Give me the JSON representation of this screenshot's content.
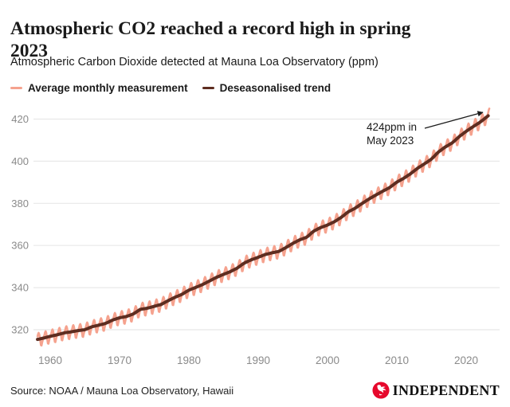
{
  "header": {
    "title_lines": [
      "Atmospheric CO2 reached a record high in spring",
      "2023"
    ],
    "subtitle": "Atmospheric Carbon Dioxide detected at Mauna Loa Observatory (ppm)"
  },
  "legend": {
    "items": [
      {
        "label": "Average monthly measurement",
        "color": "#f5a28e"
      },
      {
        "label": "Deseasonalised trend",
        "color": "#5e2d20"
      }
    ]
  },
  "annotation": {
    "line1": "424ppm in",
    "line2": "May 2023"
  },
  "footer": {
    "source": "Source: NOAA / Mauna Loa Observatory, Hawaii",
    "brand": "INDEPENDENT",
    "brand_red": "#e6082c"
  },
  "chart_data": {
    "type": "line",
    "title": "Atmospheric CO2 reached a record high in spring 2023",
    "subtitle": "Atmospheric Carbon Dioxide detected at Mauna Loa Observatory (ppm)",
    "xlabel": "",
    "ylabel": "ppm",
    "x_ticks": [
      1960,
      1970,
      1980,
      1990,
      2000,
      2010,
      2020
    ],
    "y_ticks": [
      320,
      340,
      360,
      380,
      400,
      420
    ],
    "xlim": [
      1958.1,
      2023.45
    ],
    "ylim": [
      312,
      428
    ],
    "grid": "horizontal",
    "legend_position": "top",
    "colors": {
      "monthly": "#f5a28e",
      "trend": "#5e2d20",
      "gridline": "#e8e8e8",
      "axis_text": "#8a8a8a",
      "arrow": "#1a1a1a"
    },
    "series": [
      {
        "name": "Average monthly measurement",
        "type": "monthly",
        "derivation": "deseasonalised trend + seasonal_cycle_ppm",
        "start": "Mar 1958",
        "end": "May 2023",
        "end_value_ppm": 424
      },
      {
        "name": "Deseasonalised trend",
        "type": "annual",
        "start_year": 1958,
        "values": [
          315.3,
          316.0,
          316.9,
          317.6,
          318.5,
          319.0,
          319.6,
          320.0,
          321.4,
          322.2,
          323.0,
          324.6,
          325.7,
          326.3,
          327.5,
          329.7,
          330.2,
          331.1,
          332.0,
          333.8,
          335.4,
          336.8,
          338.8,
          340.1,
          341.5,
          343.2,
          344.9,
          346.3,
          347.6,
          349.3,
          351.7,
          353.2,
          354.4,
          355.7,
          356.5,
          357.2,
          359.0,
          361.0,
          362.7,
          363.9,
          366.8,
          368.5,
          369.7,
          371.3,
          373.4,
          376.0,
          377.7,
          380.0,
          382.1,
          384.0,
          385.8,
          387.6,
          390.1,
          391.9,
          394.1,
          396.7,
          398.8,
          401.0,
          404.4,
          406.8,
          408.7,
          411.7,
          414.2,
          416.4,
          418.5,
          421.1
        ]
      }
    ],
    "seasonal_cycle_ppm": [
      -0.1,
      0.6,
      1.4,
      2.5,
      3.0,
      2.3,
      0.7,
      -1.3,
      -3.1,
      -3.3,
      -2.1,
      -0.9
    ],
    "annotation": {
      "text": "424ppm in May 2023",
      "value_ppm": 424,
      "month": "May 2023"
    }
  }
}
